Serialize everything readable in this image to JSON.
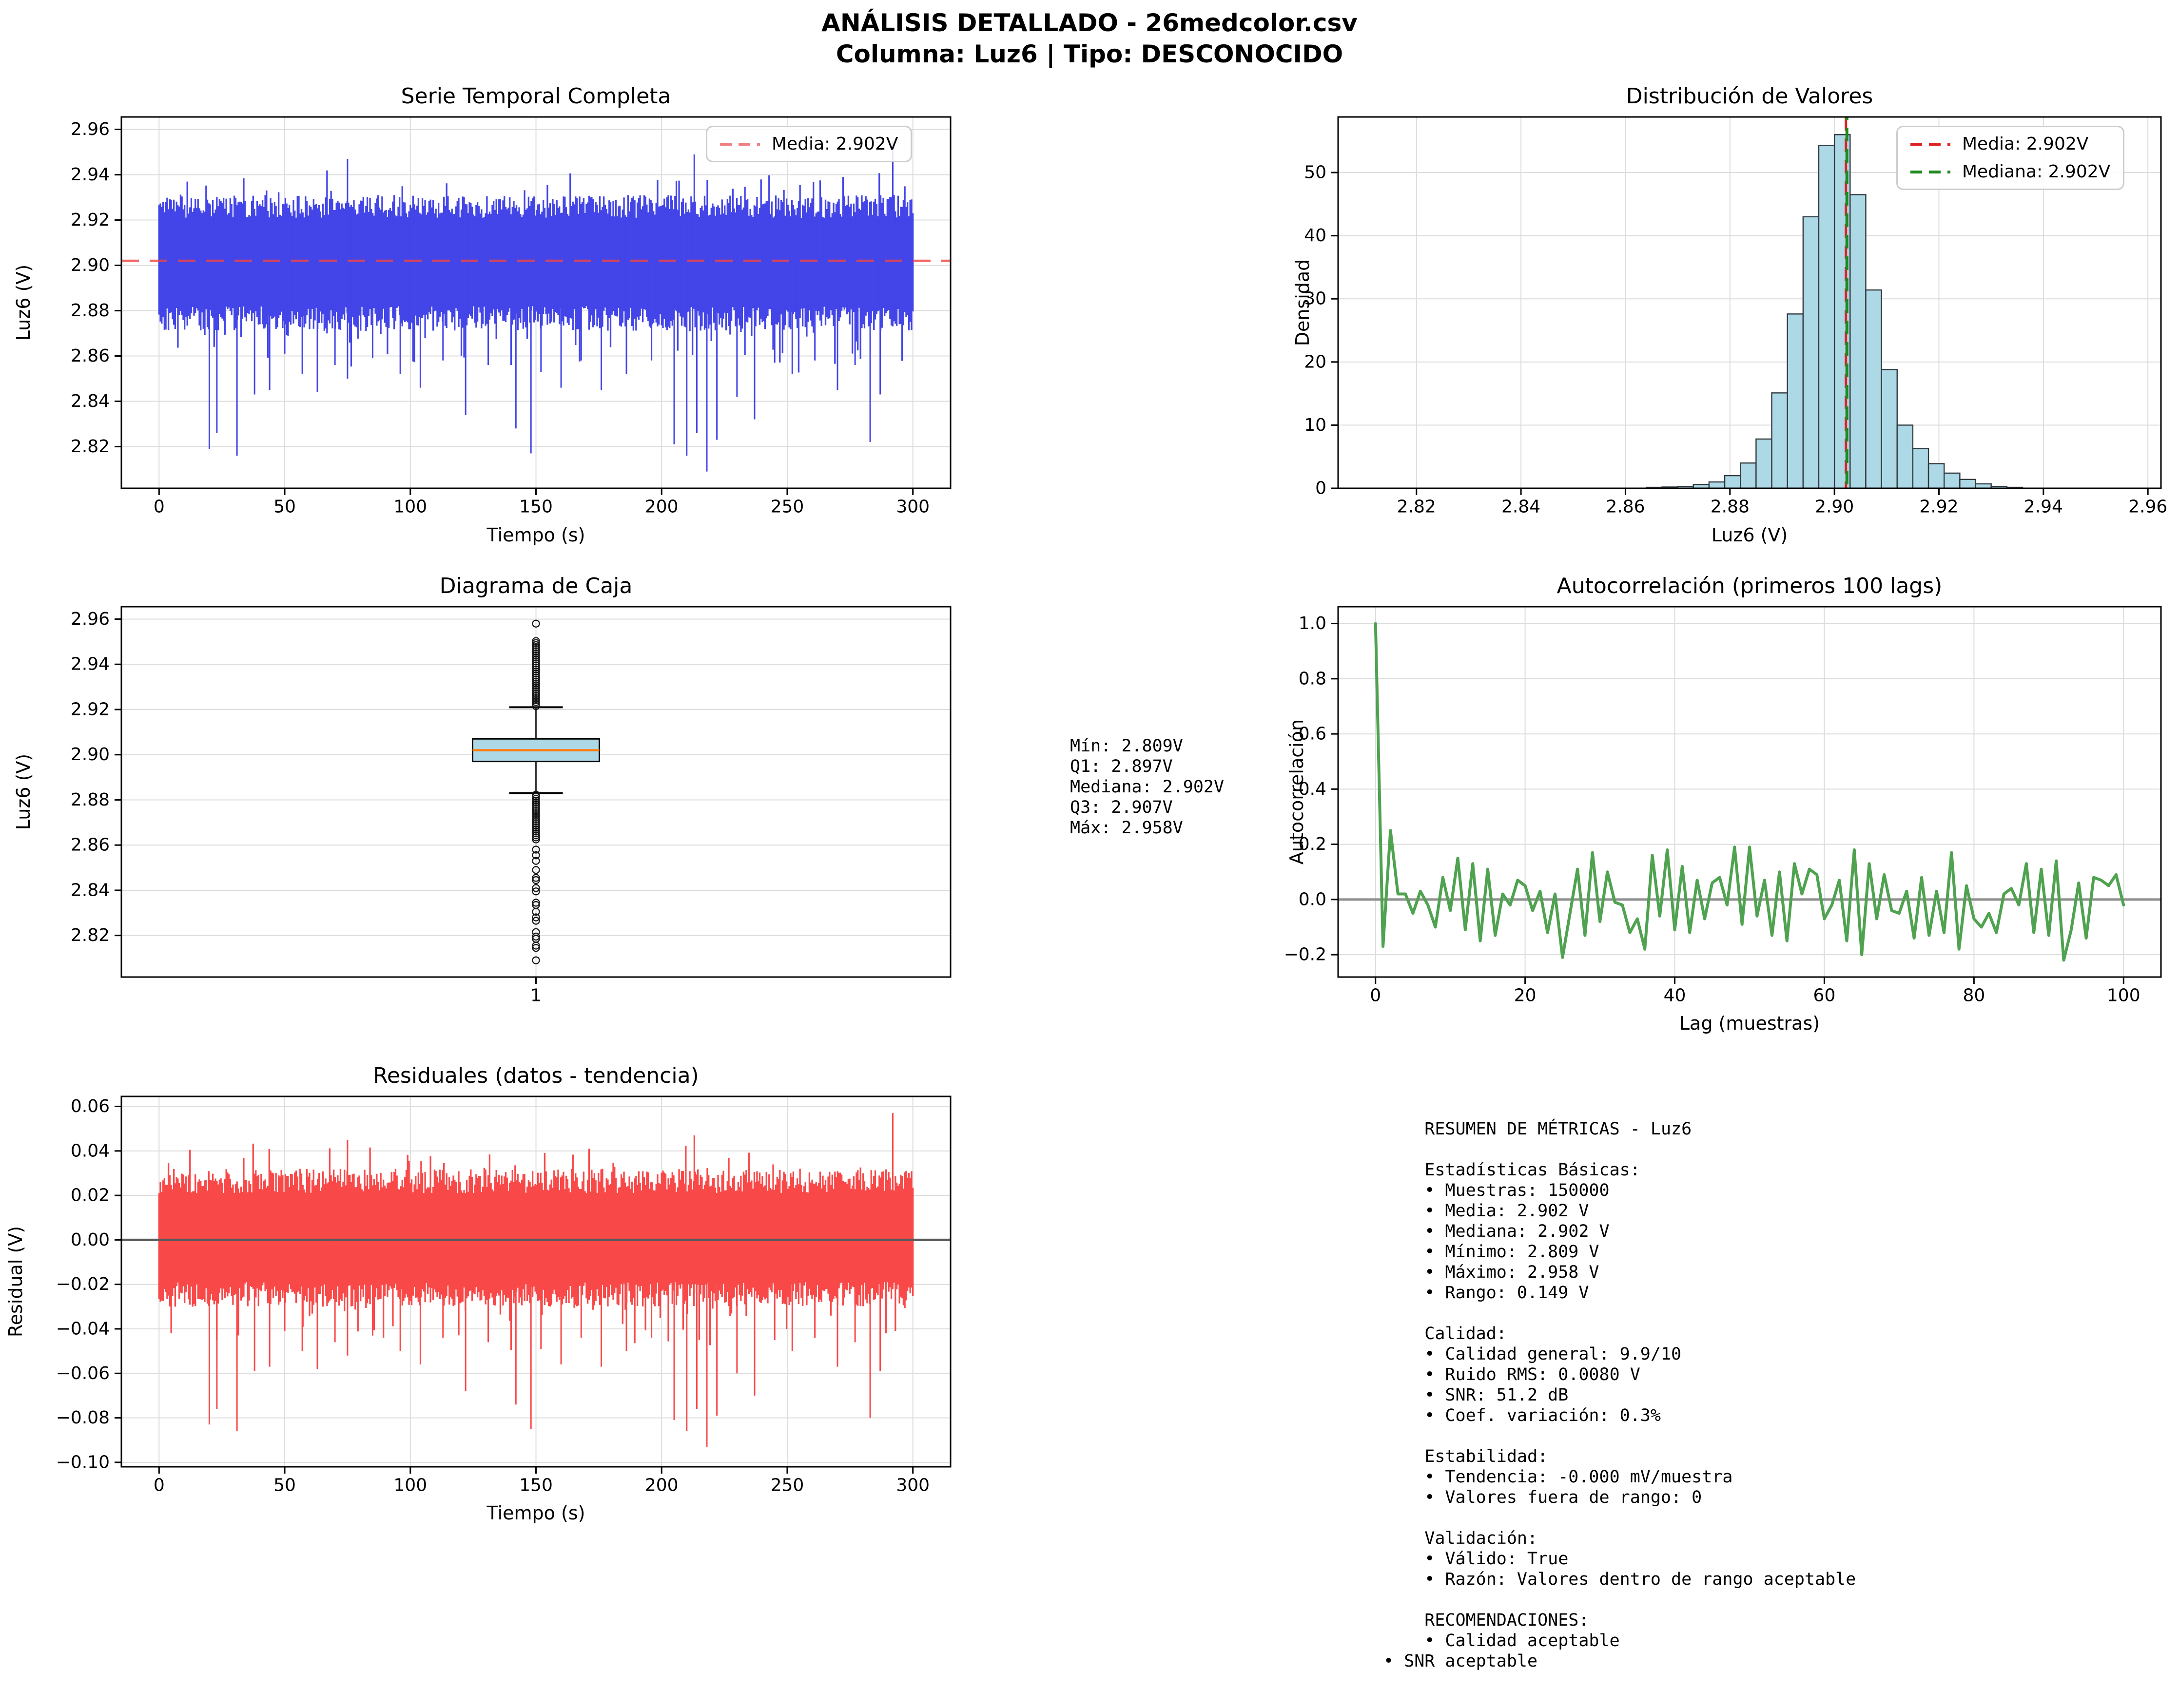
{
  "suptitle": {
    "line1": "ANÁLISIS DETALLADO - 26medcolor.csv",
    "line2": "Columna: Luz6 | Tipo: DESCONOCIDO"
  },
  "colors": {
    "series_blue": "#4345e8",
    "residual_red": "#f94848",
    "acf_green": "#4fa24f",
    "hist_fill": "#add8e6",
    "hist_edge": "#323a40",
    "box_fill": "#add8e6",
    "box_median_orange": "#ff7f0e",
    "mean_dash_red": "#ef4444",
    "median_dash_green": "#1e8a1e",
    "legend_red": "#dd2222",
    "zero_line_gray": "#8f8f8f",
    "grid_gray": "#dcdcdc"
  },
  "chart_data": [
    {
      "id": "timeseries",
      "type": "line",
      "title": "Serie Temporal Completa",
      "xlabel": "Tiempo (s)",
      "ylabel": "Luz6 (V)",
      "xlim": [
        -15,
        315
      ],
      "ylim": [
        2.8016,
        2.9655
      ],
      "x_range": [
        0,
        300
      ],
      "xticks": [
        {
          "v": 0,
          "label": "0"
        },
        {
          "v": 50,
          "label": "50"
        },
        {
          "v": 100,
          "label": "100"
        },
        {
          "v": 150,
          "label": "150"
        },
        {
          "v": 200,
          "label": "200"
        },
        {
          "v": 250,
          "label": "250"
        },
        {
          "v": 300,
          "label": "300"
        }
      ],
      "yticks": [
        {
          "v": 2.82,
          "label": "2.82"
        },
        {
          "v": 2.84,
          "label": "2.84"
        },
        {
          "v": 2.86,
          "label": "2.86"
        },
        {
          "v": 2.88,
          "label": "2.88"
        },
        {
          "v": 2.9,
          "label": "2.90"
        },
        {
          "v": 2.92,
          "label": "2.92"
        },
        {
          "v": 2.94,
          "label": "2.94"
        },
        {
          "v": 2.96,
          "label": "2.96"
        }
      ],
      "mean": 2.902,
      "line_color": "#4345e8",
      "mean_color": "#ef4444",
      "legend": [
        {
          "label": "Media: 2.902V",
          "color": "#f08080",
          "dash": true
        }
      ],
      "band": {
        "center": 2.902,
        "hi_core": 0.019,
        "hi_jitter": 0.01,
        "hi_tail": 0.014,
        "lo_core": 0.02,
        "lo_jitter": 0.011,
        "lo_tail": 0.02,
        "seed": 20240707
      },
      "spikes_down": [
        [
          20,
          2.819
        ],
        [
          23,
          2.826
        ],
        [
          31,
          2.816
        ],
        [
          38,
          2.843
        ],
        [
          44,
          2.845
        ],
        [
          50,
          2.861
        ],
        [
          57,
          2.852
        ],
        [
          63,
          2.844
        ],
        [
          70,
          2.856
        ],
        [
          75,
          2.85
        ],
        [
          85,
          2.859
        ],
        [
          96,
          2.852
        ],
        [
          104,
          2.846
        ],
        [
          113,
          2.858
        ],
        [
          122,
          2.834
        ],
        [
          131,
          2.856
        ],
        [
          142,
          2.828
        ],
        [
          148,
          2.817
        ],
        [
          152,
          2.853
        ],
        [
          160,
          2.846
        ],
        [
          168,
          2.858
        ],
        [
          176,
          2.845
        ],
        [
          186,
          2.852
        ],
        [
          196,
          2.858
        ],
        [
          205,
          2.821
        ],
        [
          210,
          2.816
        ],
        [
          214,
          2.826
        ],
        [
          218,
          2.809
        ],
        [
          222,
          2.823
        ],
        [
          230,
          2.842
        ],
        [
          237,
          2.832
        ],
        [
          245,
          2.857
        ],
        [
          252,
          2.852
        ],
        [
          261,
          2.858
        ],
        [
          270,
          2.845
        ],
        [
          277,
          2.856
        ],
        [
          283,
          2.822
        ],
        [
          287,
          2.843
        ]
      ],
      "spikes_up": [
        [
          75,
          2.947
        ],
        [
          213,
          2.949
        ],
        [
          292,
          2.955
        ]
      ]
    },
    {
      "id": "histogram",
      "type": "bar",
      "title": "Distribución de Valores",
      "xlabel": "Luz6 (V)",
      "ylabel": "Densidad",
      "xlim": [
        2.805,
        2.9625
      ],
      "ylim": [
        0,
        58.8
      ],
      "bin_start": 2.864,
      "bin_width": 0.003,
      "values": [
        0.15,
        0.2,
        0.3,
        0.6,
        1.0,
        2.0,
        4.0,
        7.8,
        15.1,
        27.6,
        43.0,
        54.3,
        56.0,
        46.5,
        31.4,
        18.8,
        10.0,
        6.3,
        3.9,
        2.4,
        1.4,
        0.7,
        0.3,
        0.15
      ],
      "xticks": [
        {
          "v": 2.82,
          "label": "2.82"
        },
        {
          "v": 2.84,
          "label": "2.84"
        },
        {
          "v": 2.86,
          "label": "2.86"
        },
        {
          "v": 2.88,
          "label": "2.88"
        },
        {
          "v": 2.9,
          "label": "2.90"
        },
        {
          "v": 2.92,
          "label": "2.92"
        },
        {
          "v": 2.94,
          "label": "2.94"
        },
        {
          "v": 2.96,
          "label": "2.96"
        }
      ],
      "yticks": [
        {
          "v": 0,
          "label": "0"
        },
        {
          "v": 10,
          "label": "10"
        },
        {
          "v": 20,
          "label": "20"
        },
        {
          "v": 30,
          "label": "30"
        },
        {
          "v": 40,
          "label": "40"
        },
        {
          "v": 50,
          "label": "50"
        }
      ],
      "mean_line": {
        "x": 2.9022,
        "color": "#dd2222"
      },
      "median_line": {
        "x": 2.9022,
        "color": "#1e8a1e"
      },
      "bar_fill": "#add8e6",
      "bar_edge": "#323a40",
      "legend": [
        {
          "label": "Media: 2.902V",
          "color": "#dd2222",
          "dash": true
        },
        {
          "label": "Mediana: 2.902V",
          "color": "#1e8a1e",
          "dash": true
        }
      ]
    },
    {
      "id": "boxplot",
      "type": "box",
      "title": "Diagrama de Caja",
      "ylabel": "Luz6 (V)",
      "xlim": [
        0.5,
        1.5
      ],
      "ylim": [
        2.8016,
        2.9655
      ],
      "xticks": [
        {
          "v": 1,
          "label": "1"
        }
      ],
      "yticks": [
        {
          "v": 2.82,
          "label": "2.82"
        },
        {
          "v": 2.84,
          "label": "2.84"
        },
        {
          "v": 2.86,
          "label": "2.86"
        },
        {
          "v": 2.88,
          "label": "2.88"
        },
        {
          "v": 2.9,
          "label": "2.90"
        },
        {
          "v": 2.92,
          "label": "2.92"
        },
        {
          "v": 2.94,
          "label": "2.94"
        },
        {
          "v": 2.96,
          "label": "2.96"
        }
      ],
      "q1": 2.897,
      "median": 2.902,
      "q3": 2.907,
      "whisker_low": 2.883,
      "whisker_high": 2.921,
      "outliers_dense": [
        {
          "from": 2.9215,
          "to": 2.9505,
          "step": 0.0009
        },
        {
          "from": 2.8625,
          "to": 2.883,
          "step": 0.0009
        }
      ],
      "outliers_sparse": [
        2.958,
        2.858,
        2.8555,
        2.853,
        2.849,
        2.8455,
        2.8445,
        2.841,
        2.8395,
        2.8345,
        2.8335,
        2.8305,
        2.828,
        2.8265,
        2.8215,
        2.8195,
        2.8185,
        2.8155,
        2.8145,
        2.809
      ],
      "box_fill": "#add8e6",
      "median_color": "#ff7f0e"
    },
    {
      "id": "acf",
      "type": "line",
      "title": "Autocorrelación (primeros 100 lags)",
      "xlabel": "Lag (muestras)",
      "ylabel": "Autocorrelación",
      "xlim": [
        -5,
        105
      ],
      "ylim": [
        -0.281,
        1.061
      ],
      "xticks": [
        {
          "v": 0,
          "label": "0"
        },
        {
          "v": 20,
          "label": "20"
        },
        {
          "v": 40,
          "label": "40"
        },
        {
          "v": 60,
          "label": "60"
        },
        {
          "v": 80,
          "label": "80"
        },
        {
          "v": 100,
          "label": "100"
        }
      ],
      "yticks": [
        {
          "v": -0.2,
          "label": "−0.2"
        },
        {
          "v": 0.0,
          "label": "0.0"
        },
        {
          "v": 0.2,
          "label": "0.2"
        },
        {
          "v": 0.4,
          "label": "0.4"
        },
        {
          "v": 0.6,
          "label": "0.6"
        },
        {
          "v": 0.8,
          "label": "0.8"
        },
        {
          "v": 1.0,
          "label": "1.0"
        }
      ],
      "line_color": "#4fa24f",
      "zero_line_color": "#8f8f8f",
      "values": [
        1.0,
        -0.17,
        0.25,
        0.02,
        0.02,
        -0.05,
        0.03,
        -0.02,
        -0.1,
        0.08,
        -0.04,
        0.15,
        -0.11,
        0.13,
        -0.15,
        0.11,
        -0.13,
        0.02,
        -0.02,
        0.07,
        0.05,
        -0.04,
        0.03,
        -0.12,
        0.02,
        -0.21,
        -0.05,
        0.11,
        -0.13,
        0.17,
        -0.08,
        0.1,
        -0.01,
        -0.02,
        -0.12,
        -0.07,
        -0.18,
        0.16,
        -0.06,
        0.18,
        -0.11,
        0.12,
        -0.12,
        0.07,
        -0.07,
        0.06,
        0.08,
        -0.02,
        0.19,
        -0.09,
        0.19,
        -0.06,
        0.07,
        -0.13,
        0.1,
        -0.15,
        0.13,
        0.02,
        0.11,
        0.09,
        -0.07,
        -0.02,
        0.07,
        -0.15,
        0.18,
        -0.2,
        0.13,
        -0.07,
        0.09,
        -0.04,
        -0.05,
        0.03,
        -0.14,
        0.08,
        -0.13,
        0.03,
        -0.12,
        0.17,
        -0.18,
        0.05,
        -0.07,
        -0.1,
        -0.05,
        -0.12,
        0.02,
        0.04,
        -0.02,
        0.13,
        -0.12,
        0.11,
        -0.13,
        0.14,
        -0.22,
        -0.11,
        0.06,
        -0.14,
        0.08,
        0.07,
        0.05,
        0.09,
        -0.02
      ]
    },
    {
      "id": "residuals",
      "type": "line",
      "title": "Residuales (datos - tendencia)",
      "xlabel": "Tiempo (s)",
      "ylabel": "Residual (V)",
      "xlim": [
        -15,
        315
      ],
      "ylim": [
        -0.102,
        0.0645
      ],
      "x_range": [
        0,
        300
      ],
      "xticks": [
        {
          "v": 0,
          "label": "0"
        },
        {
          "v": 50,
          "label": "50"
        },
        {
          "v": 100,
          "label": "100"
        },
        {
          "v": 150,
          "label": "150"
        },
        {
          "v": 200,
          "label": "200"
        },
        {
          "v": 250,
          "label": "250"
        },
        {
          "v": 300,
          "label": "300"
        }
      ],
      "yticks": [
        {
          "v": 0.06,
          "label": "0.06"
        },
        {
          "v": 0.04,
          "label": "0.04"
        },
        {
          "v": 0.02,
          "label": "0.02"
        },
        {
          "v": 0.0,
          "label": "0.00"
        },
        {
          "v": -0.02,
          "label": "−0.02"
        },
        {
          "v": -0.04,
          "label": "−0.04"
        },
        {
          "v": -0.06,
          "label": "−0.06"
        },
        {
          "v": -0.08,
          "label": "−0.08"
        },
        {
          "v": -0.1,
          "label": "−0.10"
        }
      ],
      "line_color": "#f94848",
      "zero_line_color": "#5a5a5a",
      "band": {
        "center": 0,
        "hi_core": 0.021,
        "hi_jitter": 0.011,
        "hi_tail": 0.014,
        "lo_core": 0.019,
        "lo_jitter": 0.011,
        "lo_tail": 0.022,
        "seed": 987654
      },
      "spikes_down": [
        [
          20,
          -0.083
        ],
        [
          23,
          -0.076
        ],
        [
          31,
          -0.086
        ],
        [
          38,
          -0.059
        ],
        [
          44,
          -0.057
        ],
        [
          50,
          -0.041
        ],
        [
          57,
          -0.05
        ],
        [
          63,
          -0.058
        ],
        [
          70,
          -0.046
        ],
        [
          75,
          -0.052
        ],
        [
          85,
          -0.043
        ],
        [
          96,
          -0.05
        ],
        [
          104,
          -0.056
        ],
        [
          113,
          -0.044
        ],
        [
          122,
          -0.068
        ],
        [
          131,
          -0.046
        ],
        [
          142,
          -0.074
        ],
        [
          148,
          -0.085
        ],
        [
          152,
          -0.049
        ],
        [
          160,
          -0.056
        ],
        [
          168,
          -0.044
        ],
        [
          176,
          -0.057
        ],
        [
          186,
          -0.05
        ],
        [
          196,
          -0.044
        ],
        [
          205,
          -0.081
        ],
        [
          210,
          -0.086
        ],
        [
          214,
          -0.076
        ],
        [
          218,
          -0.093
        ],
        [
          222,
          -0.079
        ],
        [
          230,
          -0.06
        ],
        [
          237,
          -0.07
        ],
        [
          245,
          -0.045
        ],
        [
          252,
          -0.05
        ],
        [
          261,
          -0.044
        ],
        [
          270,
          -0.057
        ],
        [
          277,
          -0.046
        ],
        [
          283,
          -0.08
        ],
        [
          287,
          -0.059
        ]
      ],
      "spikes_up": [
        [
          75,
          0.045
        ],
        [
          213,
          0.047
        ],
        [
          292,
          0.057
        ]
      ]
    }
  ],
  "stats_box": {
    "lines": [
      "Mín: 2.809V",
      "Q1: 2.897V",
      "Mediana: 2.902V",
      "Q3: 2.907V",
      "Máx: 2.958V"
    ]
  },
  "metrics_panel": {
    "lines": [
      "    RESUMEN DE MÉTRICAS - Luz6",
      "",
      "    Estadísticas Básicas:",
      "    • Muestras: 150000",
      "    • Media: 2.902 V",
      "    • Mediana: 2.902 V",
      "    • Mínimo: 2.809 V",
      "    • Máximo: 2.958 V",
      "    • Rango: 0.149 V",
      "",
      "    Calidad:",
      "    • Calidad general: 9.9/10",
      "    • Ruido RMS: 0.0080 V",
      "    • SNR: 51.2 dB",
      "    • Coef. variación: 0.3%",
      "",
      "    Estabilidad:",
      "    • Tendencia: -0.000 mV/muestra",
      "    • Valores fuera de rango: 0",
      "",
      "    Validación:",
      "    • Válido: True",
      "    • Razón: Valores dentro de rango aceptable",
      "",
      "    RECOMENDACIONES:",
      "    • Calidad aceptable",
      "• SNR aceptable"
    ]
  }
}
